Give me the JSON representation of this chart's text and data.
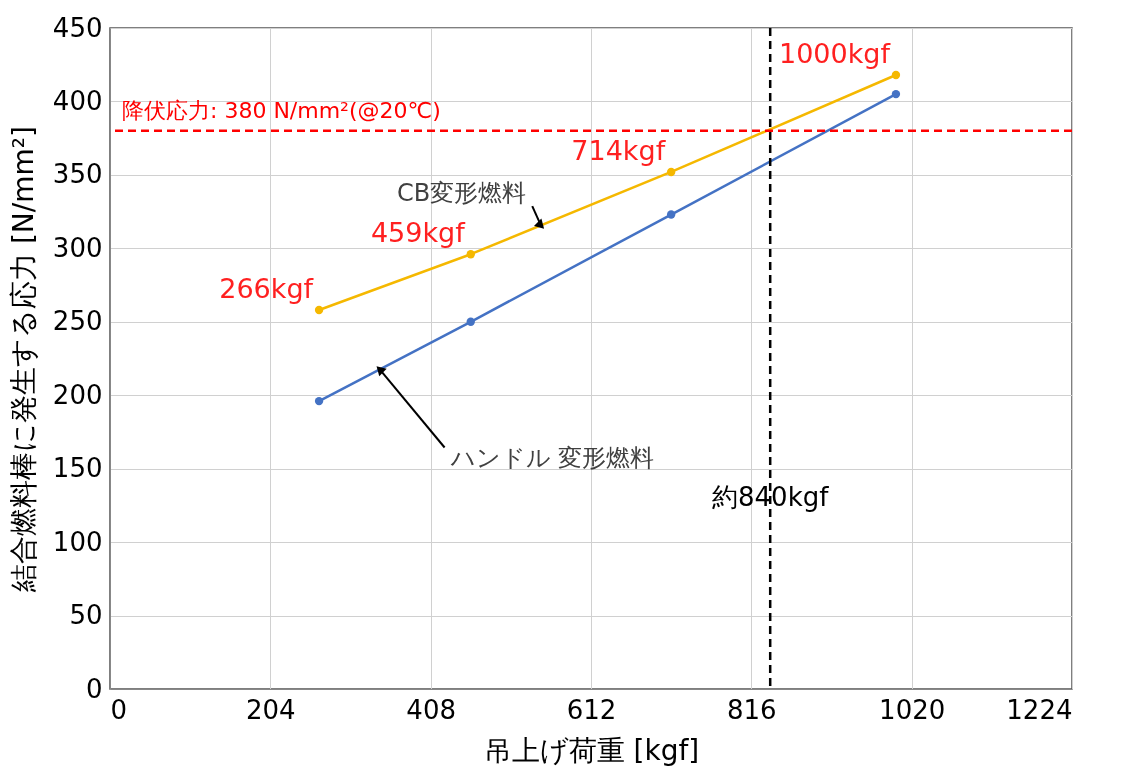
{
  "chart_data": {
    "type": "line",
    "xlabel": "吊上げ荷重 [kgf]",
    "ylabel": "結合燃料棒に発生する応力 [N/mm²]",
    "xlim": [
      0,
      1224
    ],
    "xticks": [
      0,
      204,
      408,
      612,
      816,
      1020,
      1224
    ],
    "ylim": [
      0,
      450
    ],
    "yticks": [
      0,
      50,
      100,
      150,
      200,
      250,
      300,
      350,
      400,
      450
    ],
    "grid": true,
    "marker": "circle",
    "series": [
      {
        "name": "CB変形燃料",
        "color": "#f5b800",
        "x": [
          266,
          459,
          714,
          1000
        ],
        "values": [
          258,
          296,
          352,
          418
        ]
      },
      {
        "name": "ハンドル 変形燃料",
        "color": "#4472c4",
        "x": [
          266,
          459,
          714,
          1000
        ],
        "values": [
          196,
          250,
          323,
          405
        ]
      }
    ],
    "ref_lines": [
      {
        "axis": "y",
        "value": 380,
        "label": "降伏応力: 380 N/mm²(@20℃)",
        "color": "#ff0000",
        "line_style": "dashed"
      },
      {
        "axis": "x",
        "value": 840,
        "label": "約840kgf",
        "color": "#000000",
        "line_style": "dashed"
      }
    ],
    "annotations": [
      {
        "text": "266kgf",
        "x": 266,
        "y": 258
      },
      {
        "text": "459kgf",
        "x": 459,
        "y": 296
      },
      {
        "text": "714kgf",
        "x": 714,
        "y": 352
      },
      {
        "text": "1000kgf",
        "x": 1000,
        "y": 418
      }
    ]
  }
}
